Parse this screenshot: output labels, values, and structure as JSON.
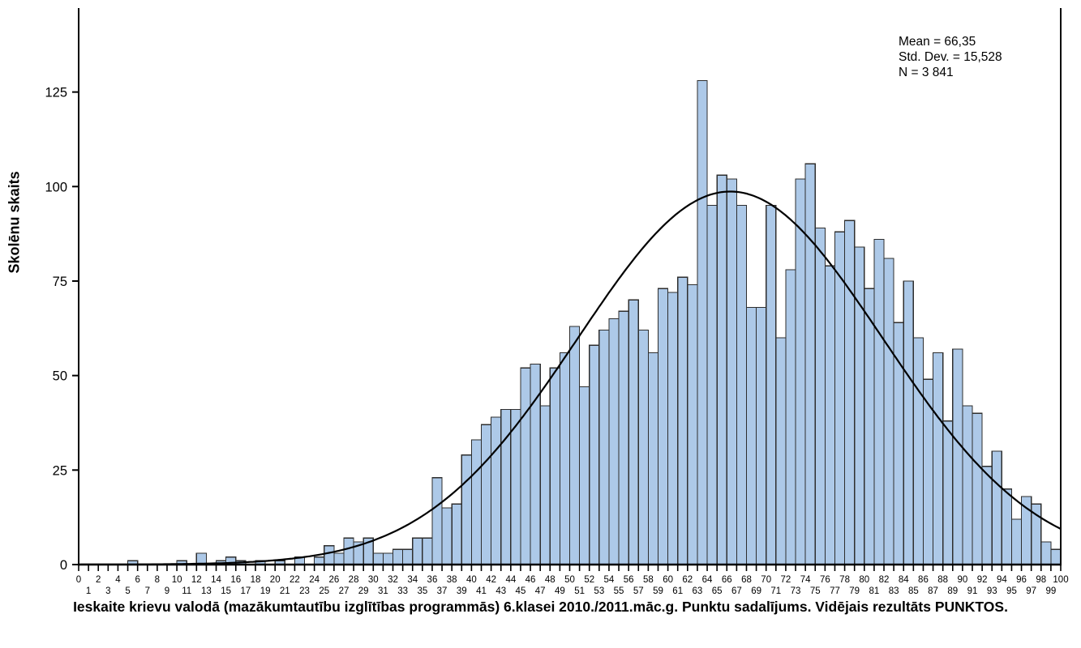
{
  "page": {
    "background": "#ffffff"
  },
  "stats_box": {
    "mean_label": "Mean = 66,35",
    "std_label": "Std. Dev. = 15,528",
    "n_label": "N = 3 841"
  },
  "y_axis_title": "Skolēnu skaits",
  "title": "Ieskaite krievu valodā (mazākumtautību izglītības programmās) 6.klasei 2010./2011.māc.g. Punktu sadalījums. Vidējais rezultāts PUNKTOS.",
  "chart_data": {
    "type": "bar",
    "subtype": "histogram",
    "title": "Ieskaite krievu valodā (mazākumtautību izglītības programmās) 6.klasei 2010./2011.māc.g. Punktu sadalījums. Vidējais rezultāts PUNKTOS.",
    "xlabel": "",
    "ylabel": "Skolēnu skaits",
    "bin_width": 1,
    "bin_starts": [
      0,
      1,
      2,
      3,
      4,
      5,
      6,
      7,
      8,
      9,
      10,
      11,
      12,
      13,
      14,
      15,
      16,
      17,
      18,
      19,
      20,
      21,
      22,
      23,
      24,
      25,
      26,
      27,
      28,
      29,
      30,
      31,
      32,
      33,
      34,
      35,
      36,
      37,
      38,
      39,
      40,
      41,
      42,
      43,
      44,
      45,
      46,
      47,
      48,
      49,
      50,
      51,
      52,
      53,
      54,
      55,
      56,
      57,
      58,
      59,
      60,
      61,
      62,
      63,
      64,
      65,
      66,
      67,
      68,
      69,
      70,
      71,
      72,
      73,
      74,
      75,
      76,
      77,
      78,
      79,
      80,
      81,
      82,
      83,
      84,
      85,
      86,
      87,
      88,
      89,
      90,
      91,
      92,
      93,
      94,
      95,
      96,
      97,
      98,
      99
    ],
    "counts": [
      0,
      0,
      0,
      0,
      0,
      1,
      0,
      0,
      0,
      0,
      1,
      0,
      3,
      0,
      1,
      2,
      1,
      0,
      1,
      0,
      1,
      0,
      2,
      0,
      2,
      5,
      3,
      7,
      6,
      7,
      3,
      3,
      4,
      4,
      7,
      7,
      23,
      15,
      16,
      29,
      33,
      37,
      39,
      41,
      41,
      52,
      53,
      42,
      52,
      56,
      63,
      47,
      58,
      62,
      65,
      67,
      70,
      62,
      56,
      73,
      72,
      76,
      74,
      128,
      95,
      103,
      102,
      95,
      68,
      68,
      95,
      60,
      78,
      102,
      106,
      89,
      79,
      88,
      91,
      84,
      73,
      86,
      81,
      64,
      75,
      60,
      49,
      56,
      38,
      57,
      42,
      40,
      26,
      30,
      20,
      12,
      18,
      16,
      6,
      4
    ],
    "normal_curve": {
      "mean": 66.35,
      "std_dev": 15.528,
      "n": 3841,
      "bin_width": 1
    },
    "xlim": [
      0,
      100
    ],
    "ylim": [
      0,
      147
    ],
    "x_tick_step": 1,
    "y_ticks": [
      0,
      25,
      50,
      75,
      100,
      125
    ],
    "grid": false,
    "legend": false,
    "colors": {
      "bar_fill": "#adc9e8",
      "bar_stroke": "#2e2e2e",
      "curve": "#000000",
      "axis": "#000000",
      "text": "#000000"
    }
  }
}
